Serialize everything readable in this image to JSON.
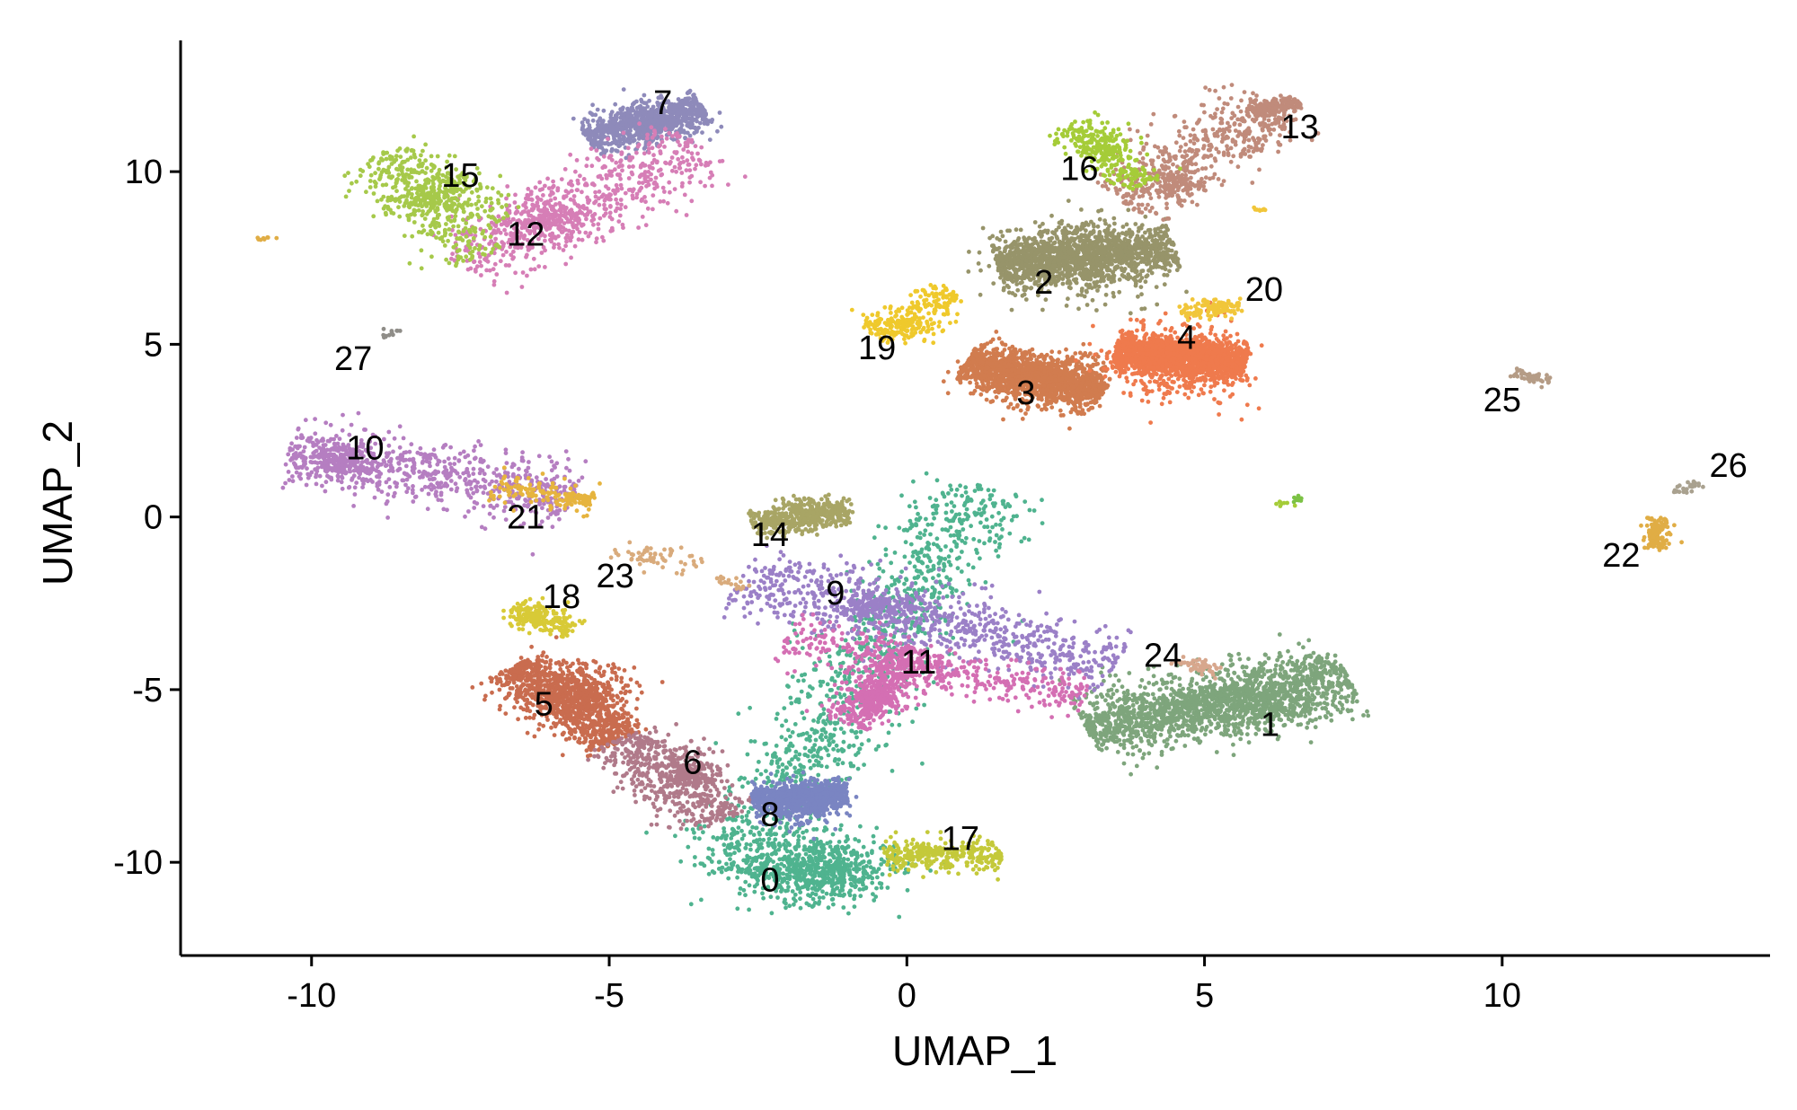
{
  "chart_data": {
    "type": "scatter",
    "title": "",
    "xlabel": "UMAP_1",
    "ylabel": "UMAP_2",
    "xlim": [
      -12.2,
      14.5
    ],
    "ylim": [
      -12.7,
      13.8
    ],
    "x_ticks": [
      -10,
      -5,
      0,
      5,
      10
    ],
    "y_ticks": [
      -10,
      -5,
      0,
      5,
      10
    ],
    "x_tick_labels": [
      "-10",
      "-5",
      "0",
      "5",
      "10"
    ],
    "y_tick_labels": [
      "-10",
      "-5",
      "0",
      "5",
      "10"
    ],
    "grid": false,
    "legend": "none",
    "clusters": [
      {
        "id": "0",
        "color": "#4fb38f",
        "label_pos": [
          -2.3,
          -10.5
        ],
        "segments": [
          [
            -3.0,
            -10.3,
            1.3,
            0.9,
            1200
          ]
        ],
        "points": [
          [
            -1.5,
            -10.2,
            1.1,
            0.8,
            700
          ]
        ]
      },
      {
        "id": "1",
        "color": "#7ea57c",
        "label_pos": [
          6.1,
          -6.0
        ],
        "segments": [
          [
            3.0,
            -6.1,
            7.4,
            -4.6,
            1500
          ]
        ],
        "points": [
          [
            5.6,
            -5.5,
            1.2,
            0.5,
            400
          ]
        ]
      },
      {
        "id": "2",
        "color": "#97946a",
        "label_pos": [
          2.3,
          6.8
        ],
        "segments": [
          [
            1.5,
            7.3,
            4.5,
            7.8,
            1200
          ]
        ],
        "points": [
          [
            2.8,
            7.5,
            1.0,
            0.9,
            500
          ]
        ]
      },
      {
        "id": "3",
        "color": "#d17c4f",
        "label_pos": [
          2.0,
          3.6
        ],
        "segments": [
          [
            1.0,
            4.5,
            3.3,
            3.6,
            1300
          ]
        ],
        "points": [
          [
            2.2,
            4.0,
            0.9,
            0.7,
            400
          ]
        ]
      },
      {
        "id": "4",
        "color": "#ef7a4d",
        "label_pos": [
          4.7,
          5.2
        ],
        "segments": [
          [
            3.5,
            4.8,
            5.7,
            4.5,
            1400
          ]
        ],
        "points": [
          [
            4.6,
            4.5,
            0.9,
            0.9,
            500
          ]
        ]
      },
      {
        "id": "5",
        "color": "#c96c4f",
        "label_pos": [
          -6.1,
          -5.4
        ],
        "segments": [
          [
            -6.6,
            -4.3,
            -4.8,
            -6.5,
            900
          ]
        ],
        "points": [
          [
            -5.4,
            -5.1,
            0.7,
            0.7,
            300
          ]
        ]
      },
      {
        "id": "6",
        "color": "#b07a8a",
        "label_pos": [
          -3.6,
          -7.1
        ],
        "segments": [
          [
            -4.8,
            -6.4,
            -3.1,
            -8.8,
            500
          ]
        ],
        "points": [
          [
            -3.6,
            -7.4,
            0.4,
            0.5,
            150
          ]
        ]
      },
      {
        "id": "7",
        "color": "#8e8aba",
        "label_pos": [
          -4.1,
          12.0
        ],
        "segments": [
          [
            -5.4,
            11.0,
            -3.4,
            11.8,
            700
          ]
        ],
        "points": [
          [
            -4.2,
            11.5,
            0.6,
            0.5,
            250
          ]
        ]
      },
      {
        "id": "8",
        "color": "#7a85c2",
        "label_pos": [
          -2.3,
          -8.6
        ],
        "segments": [
          [
            -2.6,
            -8.2,
            -1.0,
            -8.0,
            700
          ]
        ],
        "points": [
          [
            -1.7,
            -8.3,
            0.5,
            0.5,
            250
          ]
        ]
      },
      {
        "id": "9",
        "color": "#9b80c7",
        "label_pos": [
          -1.2,
          -2.2
        ],
        "segments": [
          [
            -2.8,
            -1.8,
            3.5,
            -4.3,
            800
          ]
        ],
        "points": [
          [
            -0.5,
            -2.6,
            0.6,
            0.3,
            150
          ]
        ]
      },
      {
        "id": "10",
        "color": "#b57ec1",
        "label_pos": [
          -9.1,
          2.0
        ],
        "segments": [
          [
            -10.4,
            1.9,
            -5.6,
            0.6,
            700
          ]
        ],
        "points": [
          [
            -9.5,
            1.6,
            0.5,
            0.4,
            200
          ]
        ]
      },
      {
        "id": "11",
        "color": "#d46fb3",
        "label_pos": [
          0.2,
          -4.2
        ],
        "segments": [
          [
            -1.0,
            -6.0,
            0.2,
            -3.8,
            450
          ],
          [
            -2.0,
            -3.4,
            0.6,
            -4.5,
            200
          ],
          [
            0.6,
            -4.5,
            3.0,
            -5.2,
            200
          ]
        ],
        "points": [
          [
            -0.5,
            -5.2,
            0.3,
            0.4,
            120
          ]
        ]
      },
      {
        "id": "12",
        "color": "#d67eb6",
        "label_pos": [
          -6.4,
          8.2
        ],
        "segments": [
          [
            -7.5,
            7.3,
            -3.5,
            10.8,
            600
          ]
        ],
        "points": [
          [
            -6.0,
            8.6,
            0.8,
            0.6,
            200
          ]
        ]
      },
      {
        "id": "13",
        "color": "#c08b7b",
        "label_pos": [
          6.6,
          11.3
        ],
        "segments": [
          [
            3.5,
            9.2,
            6.2,
            11.9,
            500
          ],
          [
            5.8,
            11.8,
            6.6,
            12.0,
            200
          ]
        ],
        "points": [
          [
            4.5,
            9.6,
            0.4,
            0.3,
            100
          ]
        ]
      },
      {
        "id": "14",
        "color": "#a8a565",
        "label_pos": [
          -2.3,
          -0.5
        ],
        "segments": [
          [
            -2.6,
            -0.2,
            -1.0,
            0.1,
            350
          ]
        ],
        "points": [
          [
            -1.6,
            0.2,
            0.4,
            0.3,
            150
          ]
        ]
      },
      {
        "id": "15",
        "color": "#a6c94a",
        "label_pos": [
          -7.5,
          9.9
        ],
        "segments": [
          [
            -8.9,
            10.3,
            -7.2,
            7.5,
            250
          ],
          [
            -8.8,
            10.6,
            -6.8,
            8.6,
            200
          ]
        ],
        "points": [
          [
            -7.9,
            9.3,
            0.5,
            0.5,
            150
          ]
        ]
      },
      {
        "id": "16",
        "color": "#a5cc38",
        "label_pos": [
          2.9,
          10.1
        ],
        "segments": [
          [
            2.7,
            11.4,
            4.0,
            9.6,
            250
          ]
        ],
        "points": [
          [
            3.4,
            10.6,
            0.2,
            0.3,
            60
          ]
        ]
      },
      {
        "id": "17",
        "color": "#c4c93a",
        "label_pos": [
          0.9,
          -9.3
        ],
        "segments": [
          [
            -0.4,
            -9.8,
            1.6,
            -9.8,
            250
          ]
        ],
        "points": [
          [
            0.5,
            -9.7,
            0.5,
            0.2,
            60
          ]
        ]
      },
      {
        "id": "18",
        "color": "#d8ca37",
        "label_pos": [
          -5.8,
          -2.3
        ],
        "segments": [
          [
            -6.6,
            -2.6,
            -5.6,
            -3.3,
            150
          ]
        ],
        "points": [
          [
            -6.3,
            -2.9,
            0.3,
            0.3,
            80
          ]
        ]
      },
      {
        "id": "19",
        "color": "#efc92c",
        "label_pos": [
          -0.5,
          4.9
        ],
        "segments": [
          [
            -0.6,
            5.3,
            0.8,
            6.5,
            200
          ]
        ],
        "points": [
          [
            0.0,
            5.5,
            0.4,
            0.3,
            80
          ]
        ]
      },
      {
        "id": "20",
        "color": "#f1c63a",
        "label_pos": [
          6.0,
          6.6
        ],
        "segments": [
          [
            4.6,
            5.9,
            5.6,
            6.1,
            90
          ]
        ],
        "points": [
          [
            5.2,
            6.1,
            0.3,
            0.2,
            40
          ]
        ]
      },
      {
        "id": "21",
        "color": "#e6b43e",
        "label_pos": [
          -6.4,
          0.0
        ],
        "segments": [
          [
            -7.0,
            0.9,
            -5.2,
            0.4,
            120
          ]
        ],
        "points": [
          [
            -5.5,
            0.5,
            0.3,
            0.15,
            40
          ]
        ]
      },
      {
        "id": "22",
        "color": "#e0ad45",
        "label_pos": [
          12.0,
          -1.1
        ],
        "segments": [
          [
            12.6,
            0.0,
            12.6,
            -0.9,
            90
          ]
        ],
        "points": [
          [
            12.6,
            -0.5,
            0.1,
            0.3,
            30
          ]
        ]
      },
      {
        "id": "23",
        "color": "#d9ab7c",
        "label_pos": [
          -4.9,
          -1.7
        ],
        "segments": [
          [
            -4.9,
            -0.9,
            -3.4,
            -1.4,
            50
          ],
          [
            -3.2,
            -1.7,
            -2.7,
            -2.1,
            20
          ]
        ],
        "points": [
          [
            -4.5,
            -1.2,
            0.2,
            0.1,
            10
          ]
        ]
      },
      {
        "id": "24",
        "color": "#d7a78d",
        "label_pos": [
          4.3,
          -4.0
        ],
        "segments": [
          [
            4.5,
            -4.1,
            5.3,
            -4.5,
            40
          ]
        ],
        "points": [
          [
            4.9,
            -4.3,
            0.2,
            0.1,
            10
          ]
        ]
      },
      {
        "id": "25",
        "color": "#b59c86",
        "label_pos": [
          10.0,
          3.4
        ],
        "segments": [
          [
            10.2,
            4.2,
            10.8,
            3.9,
            40
          ]
        ],
        "points": [
          [
            10.5,
            4.05,
            0.1,
            0.05,
            10
          ]
        ]
      },
      {
        "id": "26",
        "color": "#a9a18f",
        "label_pos": [
          13.8,
          1.5
        ],
        "segments": [
          [
            12.9,
            0.7,
            13.3,
            1.0,
            25
          ]
        ],
        "points": []
      },
      {
        "id": "27",
        "color": "#8f8d88",
        "label_pos": [
          -9.3,
          4.6
        ],
        "segments": [
          [
            -8.8,
            5.3,
            -8.5,
            5.3,
            12
          ]
        ],
        "points": []
      }
    ],
    "stray_points": [
      {
        "color": "#e0ad45",
        "x": -10.8,
        "y": 8.1
      },
      {
        "color": "#7cc245",
        "x": 6.6,
        "y": 0.5
      },
      {
        "color": "#a5cc38",
        "x": 6.3,
        "y": 0.4
      },
      {
        "color": "#f1c63a",
        "x": 5.9,
        "y": 8.9
      }
    ]
  }
}
